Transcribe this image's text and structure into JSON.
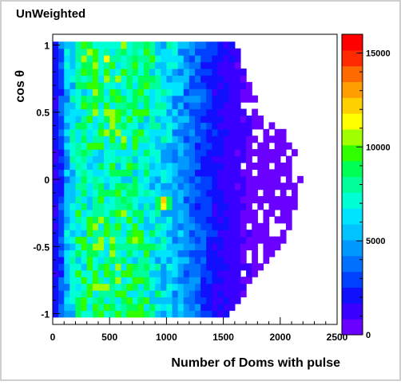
{
  "chart_data": {
    "type": "heatmap",
    "title": "UnWeighted",
    "xlabel": "Number of Doms with pulse",
    "ylabel": "cos θ",
    "xlim": [
      0,
      2500
    ],
    "ylim": [
      -1.08,
      1.08
    ],
    "x_ticks": [
      0,
      500,
      1000,
      1500,
      2000,
      2500
    ],
    "x_tick_labels": [
      "0",
      "500",
      "1000",
      "1500",
      "2000",
      "2500"
    ],
    "y_ticks": [
      -1,
      -0.5,
      0,
      0.5,
      1
    ],
    "y_tick_labels": [
      "-1",
      "-0.5",
      "0",
      "0.5",
      "1"
    ],
    "z_range": [
      0,
      16000
    ],
    "z_ticks": [
      0,
      5000,
      10000,
      15000
    ],
    "z_tick_labels": [
      "0",
      "5000",
      "10000",
      "15000"
    ],
    "colormap": [
      "#6a00ff",
      "#3a00ff",
      "#1010ff",
      "#0040ff",
      "#0070ff",
      "#0099ff",
      "#00c3ff",
      "#00e5ff",
      "#00ffd5",
      "#00ff9a",
      "#00ff55",
      "#30ff00",
      "#a0ff00",
      "#ffff00",
      "#ffd000",
      "#ff9e00",
      "#ff6a00",
      "#ff2a00",
      "#ff0000"
    ],
    "x_bin_centers": [
      25,
      75,
      125,
      175,
      225,
      275,
      325,
      375,
      425,
      475,
      525,
      575,
      625,
      675,
      725,
      775,
      825,
      875,
      925,
      975,
      1025,
      1075,
      1125,
      1175,
      1225,
      1275,
      1325,
      1375,
      1425,
      1475,
      1525,
      1575,
      1625,
      1675,
      1725,
      1775,
      1825,
      1875,
      1925,
      1975,
      2025,
      2075,
      2125,
      2175,
      2225,
      2275,
      2325,
      2375
    ],
    "y_bin_centers": [
      -1.0,
      -0.95,
      -0.9,
      -0.85,
      -0.8,
      -0.75,
      -0.7,
      -0.65,
      -0.6,
      -0.55,
      -0.5,
      -0.45,
      -0.4,
      -0.35,
      -0.3,
      -0.25,
      -0.2,
      -0.15,
      -0.1,
      -0.05,
      0.0,
      0.05,
      0.1,
      0.15,
      0.2,
      0.25,
      0.3,
      0.35,
      0.4,
      0.45,
      0.5,
      0.55,
      0.6,
      0.65,
      0.7,
      0.75,
      0.8,
      0.85,
      0.9,
      0.95,
      1.0
    ],
    "x_profile": [
      1900,
      3200,
      5400,
      6800,
      7600,
      7900,
      8100,
      8300,
      8400,
      8450,
      8400,
      8350,
      8250,
      8150,
      8000,
      7800,
      7550,
      7250,
      6900,
      6450,
      5950,
      5450,
      4950,
      4450,
      3950,
      3450,
      2950,
      2550,
      2150,
      1850,
      1550,
      1300,
      1100,
      900,
      750,
      620,
      500,
      420,
      340,
      280,
      220,
      170,
      140,
      110,
      80,
      60,
      50,
      40
    ],
    "x_upper_edge": [
      1.05,
      1.05,
      1.05,
      1.05,
      1.05,
      1.05,
      1.05,
      1.05,
      1.05,
      1.05,
      1.05,
      1.05,
      1.05,
      1.05,
      1.05,
      1.05,
      1.05,
      1.05,
      1.05,
      1.05,
      1.05,
      1.05,
      1.05,
      1.05,
      1.05,
      1.05,
      1.05,
      1.05,
      1.05,
      1.05,
      1.05,
      1.05,
      0.95,
      0.8,
      0.7,
      0.6,
      0.5,
      0.45,
      0.4,
      0.38,
      0.36,
      0.3,
      0.2,
      0.0,
      -0.1,
      -0.2,
      -0.4,
      -0.6
    ],
    "x_lower_edge": [
      -1.05,
      -1.05,
      -1.05,
      -1.05,
      -1.05,
      -1.05,
      -1.05,
      -1.05,
      -1.05,
      -1.05,
      -1.05,
      -1.05,
      -1.05,
      -1.05,
      -1.05,
      -1.05,
      -1.05,
      -1.05,
      -1.05,
      -1.05,
      -1.05,
      -1.05,
      -1.05,
      -1.05,
      -1.05,
      -1.05,
      -1.05,
      -1.05,
      -1.05,
      -1.05,
      -1.05,
      -0.95,
      -0.9,
      -0.85,
      -0.8,
      -0.72,
      -0.65,
      -0.6,
      -0.55,
      -0.5,
      -0.45,
      -0.35,
      -0.2,
      -0.05,
      0.1,
      0.2,
      0.3,
      0.4
    ],
    "y_profile_scale": {
      "near_plus_1": 1.05,
      "near_minus_1": 1.0,
      "middle": 0.9
    },
    "hot_spots": [
      {
        "x": 975,
        "y": -0.17,
        "z": 13500
      },
      {
        "x": 425,
        "y": -0.45,
        "z": 10500
      },
      {
        "x": 675,
        "y": -0.7,
        "z": 10000
      },
      {
        "x": 325,
        "y": 0.95,
        "z": 10200
      },
      {
        "x": 825,
        "y": 0.05,
        "z": 9000
      },
      {
        "x": 575,
        "y": 0.45,
        "z": 9500
      }
    ],
    "grid": false,
    "legend": "color-bar-right"
  }
}
